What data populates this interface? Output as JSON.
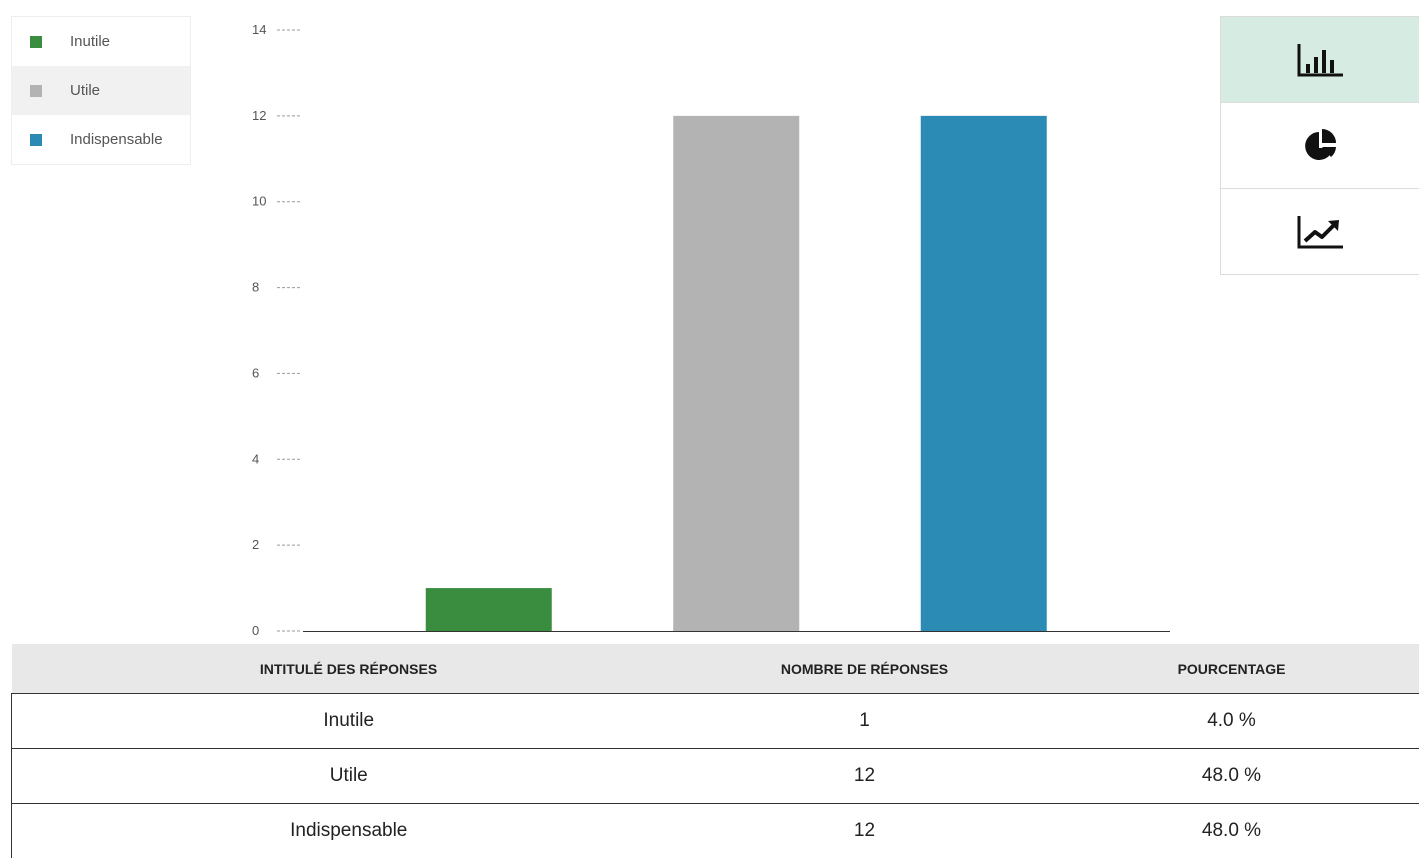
{
  "legend": {
    "items": [
      {
        "label": "Inutile",
        "color": "#3a8c3f"
      },
      {
        "label": "Utile",
        "color": "#b3b3b3"
      },
      {
        "label": "Indispensable",
        "color": "#2b8bb5"
      }
    ]
  },
  "chart_type_buttons": [
    {
      "icon": "bar-chart-icon",
      "active": true
    },
    {
      "icon": "pie-chart-icon",
      "active": false
    },
    {
      "icon": "line-chart-icon",
      "active": false
    }
  ],
  "chart_data": {
    "type": "bar",
    "categories": [
      "Inutile",
      "Utile",
      "Indispensable"
    ],
    "values": [
      1,
      12,
      12
    ],
    "colors": [
      "#3a8c3f",
      "#b3b3b3",
      "#2b8bb5"
    ],
    "ylim": [
      0,
      14
    ],
    "yticks": [
      0,
      2,
      4,
      6,
      8,
      10,
      12,
      14
    ],
    "title": "",
    "xlabel": "",
    "ylabel": "",
    "grid": false,
    "legend": "top-left"
  },
  "table": {
    "headers": [
      "INTITULÉ DES RÉPONSES",
      "NOMBRE DE RÉPONSES",
      "POURCENTAGE"
    ],
    "rows": [
      [
        "Inutile",
        "1",
        "4.0 %"
      ],
      [
        "Utile",
        "12",
        "48.0 %"
      ],
      [
        "Indispensable",
        "12",
        "48.0 %"
      ]
    ]
  }
}
